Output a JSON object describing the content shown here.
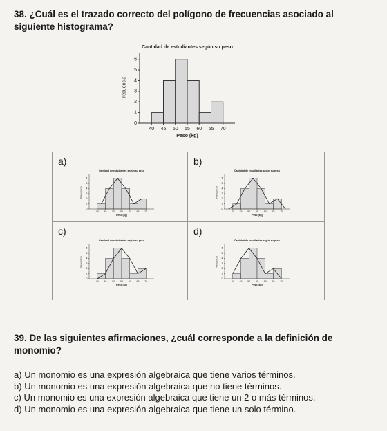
{
  "question38": {
    "number": "38.",
    "text": "¿Cuál es el trazado correcto del polígono de frecuencias asociado al siguiente histograma?"
  },
  "chart_data": {
    "type": "histogram",
    "title": "Cantidad de estudiantes según su peso",
    "x_label": "Peso (kg)",
    "y_label": "Frecuencia",
    "bins": [
      40,
      45,
      50,
      55,
      60,
      65,
      70
    ],
    "values": [
      1,
      4,
      6,
      4,
      1,
      2
    ],
    "color": "#d9d9d9",
    "xlim": [
      35,
      75
    ],
    "ylim": [
      0,
      6.5
    ],
    "xticks": [
      40,
      45,
      50,
      55,
      60,
      65,
      70
    ],
    "yticks": [
      0,
      1,
      2,
      3,
      4,
      5,
      6
    ]
  },
  "options38": [
    {
      "label": "a)",
      "polygon": {
        "x": [
          42.5,
          47.5,
          52.5,
          57.5,
          62.5,
          67.5
        ],
        "y": [
          1,
          4,
          6,
          4,
          1,
          2
        ]
      }
    },
    {
      "label": "b)",
      "polygon": {
        "x": [
          37.5,
          42.5,
          47.5,
          52.5,
          57.5,
          62.5,
          67.5,
          72.5
        ],
        "y": [
          0,
          1,
          4,
          6,
          4,
          1,
          2,
          0
        ]
      }
    },
    {
      "label": "c)",
      "polygon": {
        "x": [
          40,
          45,
          50,
          55,
          60,
          65,
          70
        ],
        "y": [
          0,
          1,
          4,
          6,
          4,
          1,
          2
        ]
      }
    },
    {
      "label": "d)",
      "polygon": {
        "x": [
          40,
          45,
          50,
          55,
          60,
          65,
          70
        ],
        "y": [
          1,
          4,
          6,
          4,
          1,
          2,
          0
        ]
      }
    }
  ],
  "question39": {
    "number": "39.",
    "text": "De las siguientes afirmaciones, ¿cuál corresponde a la definición de monomio?"
  },
  "options39": [
    {
      "label": "a)",
      "text": "Un monomio es una expresión algebraica que tiene varios términos."
    },
    {
      "label": "b)",
      "text": "Un monomio es una expresión algebraica que no tiene términos."
    },
    {
      "label": "c)",
      "text": "Un monomio es una expresión algebraica que tiene un 2 o más términos."
    },
    {
      "label": "d)",
      "text": "Un monomio es una expresión algebraica que tiene un solo término."
    }
  ]
}
